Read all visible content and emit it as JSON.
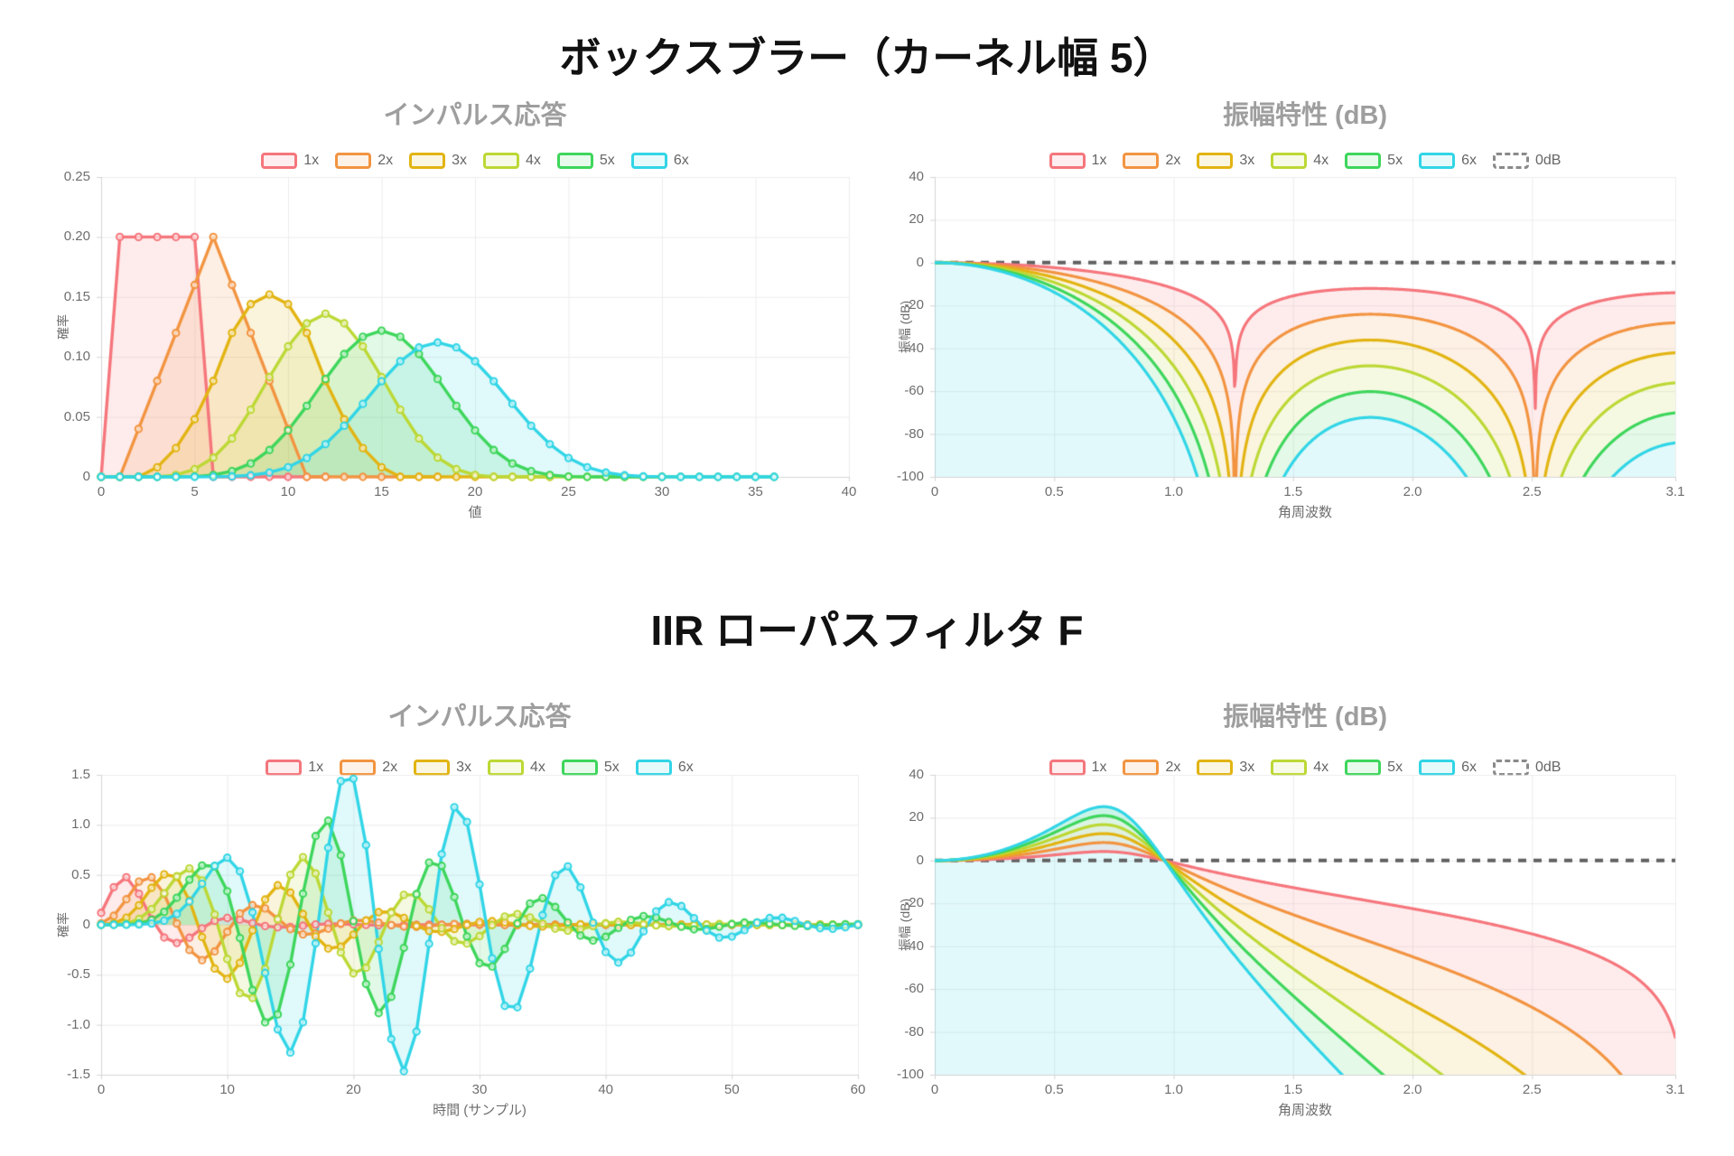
{
  "sections": [
    {
      "title": "ボックスブラー（カーネル幅 5）"
    },
    {
      "title": "IIR ローパスフィルタ F"
    }
  ],
  "palette": [
    "#f5767c",
    "#f29441",
    "#e2b412",
    "#bcd835",
    "#3ed65c",
    "#31d5e6"
  ],
  "colors": {
    "grid": "#ececec",
    "axis_border": "#d4d4d4",
    "tick_text": "#6e6e6e",
    "chart_title_text": "#9e9e9e",
    "section_title_text": "#111111",
    "zero_dash": "#616161",
    "legend_text": "#666666",
    "marker_fill": "rgba(255,255,255,0.6)"
  },
  "chart_data": [
    {
      "type": "line",
      "title": "インパルス応答",
      "xlabel": "値",
      "ylabel": "確率",
      "xlim": [
        0,
        40
      ],
      "ylim": [
        0,
        0.25
      ],
      "grid": true,
      "legend_position": "top",
      "markers": true,
      "fill": "origin",
      "xticks": [
        {
          "v": 0,
          "l": "0"
        },
        {
          "v": 5,
          "l": "5"
        },
        {
          "v": 10,
          "l": "10"
        },
        {
          "v": 15,
          "l": "15"
        },
        {
          "v": 20,
          "l": "20"
        },
        {
          "v": 25,
          "l": "25"
        },
        {
          "v": 30,
          "l": "30"
        },
        {
          "v": 35,
          "l": "35"
        },
        {
          "v": 40,
          "l": "40"
        }
      ],
      "yticks": [
        {
          "v": 0.25,
          "l": "0.25"
        },
        {
          "v": 0.2,
          "l": "0.20"
        },
        {
          "v": 0.15,
          "l": "0.15"
        },
        {
          "v": 0.1,
          "l": "0.10"
        },
        {
          "v": 0.05,
          "l": "0.05"
        },
        {
          "v": 0,
          "l": "0"
        }
      ],
      "legend": [
        {
          "label": "1x"
        },
        {
          "label": "2x"
        },
        {
          "label": "3x"
        },
        {
          "label": "4x"
        },
        {
          "label": "5x"
        },
        {
          "label": "6x"
        }
      ],
      "series": [
        {
          "name": "1x",
          "x0": 0,
          "y": [
            0,
            0.2,
            0.2,
            0.2,
            0.2,
            0.2,
            0,
            0,
            0,
            0,
            0,
            0,
            0
          ]
        },
        {
          "name": "2x",
          "x0": 0,
          "y": [
            0,
            0,
            0.04,
            0.08,
            0.12,
            0.16,
            0.2,
            0.16,
            0.12,
            0.08,
            0.04,
            0,
            0,
            0,
            0,
            0,
            0,
            0,
            0
          ]
        },
        {
          "name": "3x",
          "x0": 0,
          "y": [
            0,
            0,
            0,
            0.008,
            0.024,
            0.048,
            0.08,
            0.12,
            0.144,
            0.152,
            0.144,
            0.12,
            0.08,
            0.048,
            0.024,
            0.008,
            0,
            0,
            0,
            0,
            0,
            0,
            0,
            0,
            0
          ]
        },
        {
          "name": "4x",
          "x0": 0,
          "y": [
            0,
            0,
            0,
            0,
            0.0016,
            0.0064,
            0.016,
            0.032,
            0.056,
            0.0832,
            0.1088,
            0.128,
            0.136,
            0.128,
            0.1088,
            0.0832,
            0.056,
            0.032,
            0.016,
            0.0064,
            0.0016,
            0,
            0,
            0,
            0,
            0,
            0,
            0,
            0,
            0,
            0
          ]
        },
        {
          "name": "5x",
          "x0": 0,
          "y": [
            0,
            0,
            0,
            0,
            0,
            0.00032,
            0.0016,
            0.0048,
            0.0112,
            0.0224,
            0.03872,
            0.0592,
            0.0816,
            0.1024,
            0.1168,
            0.12192,
            0.1168,
            0.1024,
            0.0816,
            0.0592,
            0.03872,
            0.0224,
            0.0112,
            0.0048,
            0.0016,
            0.00032,
            0,
            0,
            0,
            0,
            0,
            0,
            0,
            0,
            0,
            0,
            0
          ]
        },
        {
          "name": "6x",
          "x0": 0,
          "y": [
            0,
            0,
            0,
            0,
            0,
            0,
            6.4e-05,
            0.000384,
            0.001344,
            0.003584,
            0.008064,
            0.015744,
            0.027264,
            0.042624,
            0.060864,
            0.079744,
            0.096384,
            0.107904,
            0.112064,
            0.107904,
            0.096384,
            0.079744,
            0.060864,
            0.042624,
            0.027264,
            0.015744,
            0.008064,
            0.003584,
            0.001344,
            0.000384,
            6.4e-05,
            0,
            0,
            0,
            0,
            0,
            0
          ]
        }
      ]
    },
    {
      "type": "line",
      "title": "振幅特性 (dB)",
      "xlabel": "角周波数",
      "ylabel": "振幅 (dB)",
      "xlim": [
        0,
        3.1
      ],
      "ylim": [
        -100,
        40
      ],
      "grid": true,
      "markers": false,
      "fill": "bands",
      "zero_line_db": 0,
      "xticks": [
        {
          "v": 0,
          "l": "0"
        },
        {
          "v": 0.5,
          "l": "0.5"
        },
        {
          "v": 1.0,
          "l": "1.0"
        },
        {
          "v": 1.5,
          "l": "1.5"
        },
        {
          "v": 2.0,
          "l": "2.0"
        },
        {
          "v": 2.5,
          "l": "2.5"
        },
        {
          "v": 3.1,
          "l": "3.1"
        }
      ],
      "yticks": [
        {
          "v": 40,
          "l": "40"
        },
        {
          "v": 20,
          "l": "20"
        },
        {
          "v": 0,
          "l": "0"
        },
        {
          "v": -20,
          "l": "-20"
        },
        {
          "v": -40,
          "l": "-40"
        },
        {
          "v": -60,
          "l": "-60"
        },
        {
          "v": -80,
          "l": "-80"
        },
        {
          "v": -100,
          "l": "-100"
        }
      ],
      "legend": [
        {
          "label": "1x"
        },
        {
          "label": "2x"
        },
        {
          "label": "3x"
        },
        {
          "label": "4x"
        },
        {
          "label": "5x"
        },
        {
          "label": "6x"
        },
        {
          "label": "0dB",
          "dashed": true
        }
      ],
      "generator": {
        "kind": "box_magnitude",
        "kernel_width": 5,
        "notch_frequencies": [
          1.2566,
          2.5133
        ]
      },
      "series": [
        {
          "name": "1x",
          "k": 1,
          "value_at_pi_db": -14.0
        },
        {
          "name": "2x",
          "k": 2,
          "value_at_pi_db": -28.0
        },
        {
          "name": "3x",
          "k": 3,
          "value_at_pi_db": -41.9
        },
        {
          "name": "4x",
          "k": 4,
          "value_at_pi_db": -55.9
        },
        {
          "name": "5x",
          "k": 5,
          "value_at_pi_db": -69.9
        },
        {
          "name": "6x",
          "k": 6,
          "value_at_pi_db": -83.9
        }
      ]
    },
    {
      "type": "line",
      "title": "インパルス応答",
      "xlabel": "時間 (サンプル)",
      "ylabel": "確率",
      "xlim": [
        0,
        60
      ],
      "ylim": [
        -1.5,
        1.5
      ],
      "grid": true,
      "markers": true,
      "fill": "origin",
      "xticks": [
        {
          "v": 0,
          "l": "0"
        },
        {
          "v": 10,
          "l": "10"
        },
        {
          "v": 20,
          "l": "20"
        },
        {
          "v": 30,
          "l": "30"
        },
        {
          "v": 40,
          "l": "40"
        },
        {
          "v": 50,
          "l": "50"
        },
        {
          "v": 60,
          "l": "60"
        }
      ],
      "yticks": [
        {
          "v": 1.5,
          "l": "1.5"
        },
        {
          "v": 1.0,
          "l": "1.0"
        },
        {
          "v": 0.5,
          "l": "0.5"
        },
        {
          "v": 0,
          "l": "0"
        },
        {
          "v": -0.5,
          "l": "-0.5"
        },
        {
          "v": -1.0,
          "l": "-1.0"
        },
        {
          "v": -1.5,
          "l": "-1.5"
        }
      ],
      "legend": [
        {
          "label": "1x"
        },
        {
          "label": "2x"
        },
        {
          "label": "3x"
        },
        {
          "label": "4x"
        },
        {
          "label": "5x"
        },
        {
          "label": "6x"
        }
      ],
      "generator": {
        "kind": "iir_impulse",
        "biquad": {
          "b": [
            0.11972,
            0.23944,
            0.11972
          ],
          "a1": 1.1452,
          "a2": -0.6241
        },
        "samples": 61
      },
      "series": [
        {
          "name": "1x",
          "k": 1,
          "peak": {
            "n": 2,
            "value": 0.48
          }
        },
        {
          "name": "2x",
          "k": 2
        },
        {
          "name": "3x",
          "k": 3
        },
        {
          "name": "4x",
          "k": 4
        },
        {
          "name": "5x",
          "k": 5
        },
        {
          "name": "6x",
          "k": 6,
          "peak": {
            "n": 20,
            "value": 1.37
          }
        }
      ]
    },
    {
      "type": "line",
      "title": "振幅特性 (dB)",
      "xlabel": "角周波数",
      "ylabel": "振幅 (dB)",
      "xlim": [
        0,
        3.1
      ],
      "ylim": [
        -100,
        40
      ],
      "grid": true,
      "markers": false,
      "fill": "bands",
      "zero_line_db": 0,
      "xticks": [
        {
          "v": 0,
          "l": "0"
        },
        {
          "v": 0.5,
          "l": "0.5"
        },
        {
          "v": 1.0,
          "l": "1.0"
        },
        {
          "v": 1.5,
          "l": "1.5"
        },
        {
          "v": 2.0,
          "l": "2.0"
        },
        {
          "v": 2.5,
          "l": "2.5"
        },
        {
          "v": 3.1,
          "l": "3.1"
        }
      ],
      "yticks": [
        {
          "v": 40,
          "l": "40"
        },
        {
          "v": 20,
          "l": "20"
        },
        {
          "v": 0,
          "l": "0"
        },
        {
          "v": -20,
          "l": "-20"
        },
        {
          "v": -40,
          "l": "-40"
        },
        {
          "v": -60,
          "l": "-60"
        },
        {
          "v": -80,
          "l": "-80"
        },
        {
          "v": -100,
          "l": "-100"
        }
      ],
      "legend": [
        {
          "label": "1x"
        },
        {
          "label": "2x"
        },
        {
          "label": "3x"
        },
        {
          "label": "4x"
        },
        {
          "label": "5x"
        },
        {
          "label": "6x"
        },
        {
          "label": "0dB",
          "dashed": true
        }
      ],
      "generator": {
        "kind": "iir_magnitude",
        "biquad": {
          "b": [
            0.11972,
            0.23944,
            0.11972
          ],
          "a1": 1.1452,
          "a2": -0.6241
        },
        "peak_omega": 0.7,
        "peak_db_per_stage": 4.1,
        "unity_gain_omega": 0.955
      },
      "series": [
        {
          "name": "1x",
          "k": 1,
          "peak_db": 4.1
        },
        {
          "name": "2x",
          "k": 2,
          "peak_db": 8.1
        },
        {
          "name": "3x",
          "k": 3,
          "peak_db": 12.2
        },
        {
          "name": "4x",
          "k": 4,
          "peak_db": 16.2
        },
        {
          "name": "5x",
          "k": 5,
          "peak_db": 20.3
        },
        {
          "name": "6x",
          "k": 6,
          "peak_db": 24.3
        }
      ]
    }
  ]
}
